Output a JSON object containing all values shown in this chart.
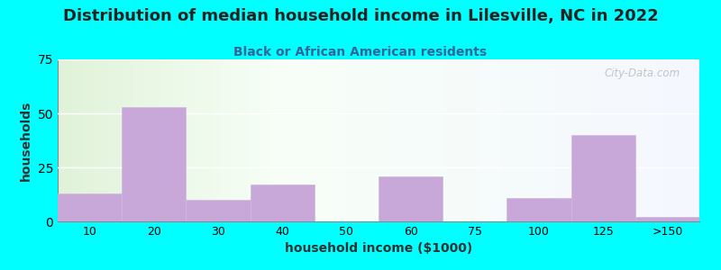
{
  "title": "Distribution of median household income in Lilesville, NC in 2022",
  "subtitle": "Black or African American residents",
  "xlabel": "household income ($1000)",
  "ylabel": "households",
  "background_color": "#00FFFF",
  "bar_color": "#c8a8d8",
  "bar_edge_color": "#d0b8e0",
  "categories": [
    "10",
    "20",
    "30",
    "40",
    "50",
    "60",
    "75",
    "100",
    "125",
    ">150"
  ],
  "values": [
    13,
    53,
    10,
    17,
    0,
    21,
    0,
    11,
    40,
    2
  ],
  "bar_lefts": [
    0,
    1,
    2,
    3,
    4,
    5,
    6,
    7,
    8,
    9
  ],
  "bar_widths": [
    1,
    1,
    1,
    1,
    1,
    1,
    1,
    1,
    1,
    1
  ],
  "ylim": [
    0,
    75
  ],
  "yticks": [
    0,
    25,
    50,
    75
  ],
  "watermark": "City-Data.com",
  "title_fontsize": 13,
  "subtitle_fontsize": 10,
  "axis_label_fontsize": 10,
  "title_color": "#222222",
  "subtitle_color": "#336699",
  "tick_label_fontsize": 9
}
